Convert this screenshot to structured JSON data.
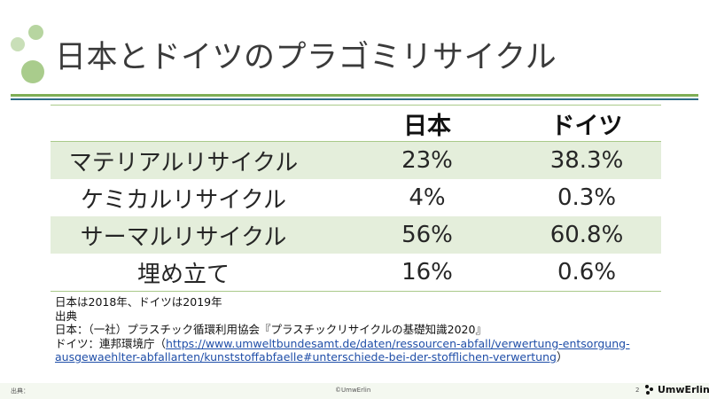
{
  "slide": {
    "title": "日本とドイツのプラゴミリサイクル"
  },
  "table": {
    "headers": [
      "",
      "日本",
      "ドイツ"
    ],
    "rows": [
      [
        "マテリアルリサイクル",
        "23%",
        "38.3%"
      ],
      [
        "ケミカルリサイクル",
        "4%",
        "0.3%"
      ],
      [
        "サーマルリサイクル",
        "56%",
        "60.8%"
      ],
      [
        "埋め立て",
        "16%",
        "0.6%"
      ]
    ]
  },
  "notes": {
    "line1": "日本は2018年、ドイツは2019年",
    "line2": "出典",
    "line3": "日本：（一社）プラスチック循環利用協会『プラスチックリサイクルの基礎知識2020』",
    "line4_prefix": "ドイツ：連邦環境庁（",
    "line4_link_a": "https://www.umweltbundesamt.de/daten/ressourcen-abfall/verwertung-entsorgung-",
    "line5_link_b": "ausgewaehlter-abfallarten/kunststoffabfaelle#unterschiede-bei-der-stofflichen-verwertung",
    "line5_suffix": "）"
  },
  "footer": {
    "source_label": "出典：",
    "copyright": "©UmwErlin",
    "page_number": "2",
    "logo_text": "UmwErlin"
  },
  "colors": {
    "accent_green": "#7fae55",
    "accent_blue": "#2e6d86",
    "row_shade": "#e4eedb"
  }
}
